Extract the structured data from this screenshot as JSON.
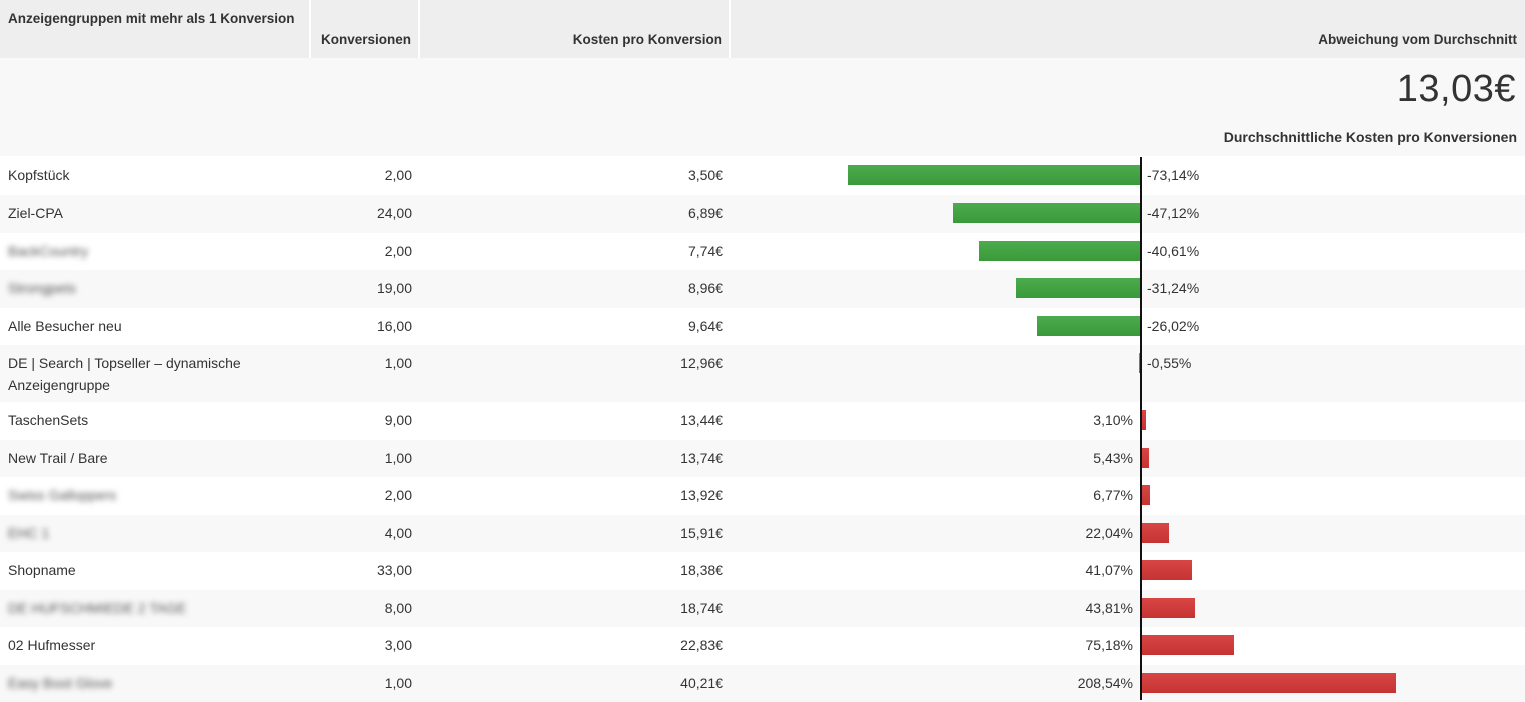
{
  "header": {
    "col_name": "Anzeigengruppen mit mehr als 1 Konversion",
    "col_conversions": "Konversionen",
    "col_cost": "Kosten pro Konversion",
    "col_deviation": "Abweichung vom Durchschnitt"
  },
  "summary": {
    "average_value": "13,03€",
    "average_label": "Durchschnittliche Kosten pro Konversionen"
  },
  "colors": {
    "negative_bar": "#43a843",
    "positive_bar": "#cf3b3b",
    "axis": "#111111"
  },
  "rows": [
    {
      "name": "Kopfstück",
      "blurred": false,
      "conversions": "2,00",
      "cost": "3,50€",
      "deviation_label": "-73,14%",
      "deviation": -73.14
    },
    {
      "name": "Ziel-CPA",
      "blurred": false,
      "conversions": "24,00",
      "cost": "6,89€",
      "deviation_label": "-47,12%",
      "deviation": -47.12
    },
    {
      "name": "BackCountry",
      "blurred": true,
      "conversions": "2,00",
      "cost": "7,74€",
      "deviation_label": "-40,61%",
      "deviation": -40.61
    },
    {
      "name": "Strongpets",
      "blurred": true,
      "conversions": "19,00",
      "cost": "8,96€",
      "deviation_label": "-31,24%",
      "deviation": -31.24
    },
    {
      "name": "Alle Besucher neu",
      "blurred": false,
      "conversions": "16,00",
      "cost": "9,64€",
      "deviation_label": "-26,02%",
      "deviation": -26.02
    },
    {
      "name": "DE | Search | Topseller – dynamische Anzeigengruppe",
      "blurred": false,
      "conversions": "1,00",
      "cost": "12,96€",
      "deviation_label": "-0,55%",
      "deviation": -0.55
    },
    {
      "name": "TaschenSets",
      "blurred": false,
      "conversions": "9,00",
      "cost": "13,44€",
      "deviation_label": "3,10%",
      "deviation": 3.1
    },
    {
      "name": "New Trail / Bare",
      "blurred": false,
      "conversions": "1,00",
      "cost": "13,74€",
      "deviation_label": "5,43%",
      "deviation": 5.43
    },
    {
      "name": "Swiss Galloppers",
      "blurred": true,
      "conversions": "2,00",
      "cost": "13,92€",
      "deviation_label": "6,77%",
      "deviation": 6.77
    },
    {
      "name": "EHC 1",
      "blurred": true,
      "conversions": "4,00",
      "cost": "15,91€",
      "deviation_label": "22,04%",
      "deviation": 22.04
    },
    {
      "name": "Shopname",
      "blurred": false,
      "conversions": "33,00",
      "cost": "18,38€",
      "deviation_label": "41,07%",
      "deviation": 41.07
    },
    {
      "name": "DE HUFSCHMIEDE 2 TAGE",
      "blurred": true,
      "conversions": "8,00",
      "cost": "18,74€",
      "deviation_label": "43,81%",
      "deviation": 43.81
    },
    {
      "name": "02 Hufmesser",
      "blurred": false,
      "conversions": "3,00",
      "cost": "22,83€",
      "deviation_label": "75,18%",
      "deviation": 75.18
    },
    {
      "name": "Easy Boot Glove",
      "blurred": true,
      "conversions": "1,00",
      "cost": "40,21€",
      "deviation_label": "208,54%",
      "deviation": 208.54
    }
  ]
}
